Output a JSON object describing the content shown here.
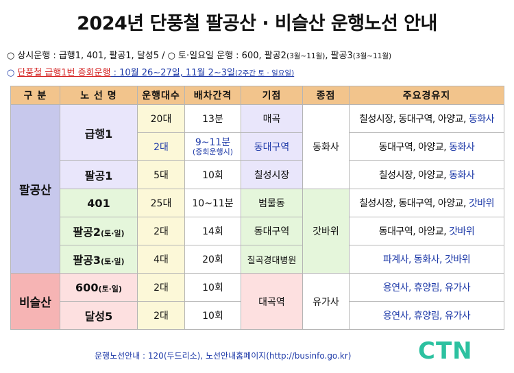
{
  "title": "2024년 단풍철 팔공산 · 비슬산 운행노선 안내",
  "notes": {
    "regular_prefix": "상시운행 : 급행1, 401, 팔공1, 달성5 /",
    "weekend_prefix": "토·일요일 운행 : 600, 팔공2",
    "weekend_p2_months": "(3월~11월)",
    "weekend_p3": ", 팔공3",
    "weekend_p3_months": "(3월~11월)",
    "extra_label": "단풍철 급행1번 증회운행",
    "extra_dates": " : 10월 26~27일, 11월 2~3일",
    "extra_small": "(2주간 토 · 일요일)"
  },
  "table": {
    "headers": [
      "구 분",
      "노 선 명",
      "운행대수",
      "배차간격",
      "기점",
      "종점",
      "주요경유지"
    ],
    "groups": [
      "팔공산",
      "비슬산"
    ],
    "rows": [
      {
        "route": "급행1",
        "vehicles": "20대",
        "interval": "13분",
        "start": "매곡",
        "end": "동화사",
        "stops_main": "칠성시장, 동대구역, 아양교, ",
        "stops_end": "동화사"
      },
      {
        "vehicles": "2대",
        "interval": "9~11분",
        "interval_sub": "(증회운행시)",
        "start": "동대구역",
        "stops_main": "동대구역, 아양교, ",
        "stops_end": "동화사"
      },
      {
        "route": "팔공1",
        "vehicles": "5대",
        "interval": "10회",
        "start": "칠성시장",
        "stops_main": "칠성시장, 아양교, ",
        "stops_end": "동화사"
      },
      {
        "route": "401",
        "vehicles": "25대",
        "interval": "10~11분",
        "start": "범물동",
        "end": "갓바위",
        "stops_main": "칠성시장, 동대구역, 아양교, ",
        "stops_end": "갓바위"
      },
      {
        "route": "팔공2",
        "route_small": "(토·일)",
        "vehicles": "2대",
        "interval": "14회",
        "start": "동대구역",
        "stops_main": "동대구역, 아양교, ",
        "stops_end": "갓바위"
      },
      {
        "route": "팔공3",
        "route_small": "(토·일)",
        "vehicles": "4대",
        "interval": "20회",
        "start": "칠곡경대병원",
        "stops_main": "파계사, 동화사, 갓바위",
        "stops_end": ""
      },
      {
        "route": "600",
        "route_small": "(토·일)",
        "vehicles": "2대",
        "interval": "10회",
        "start": "대곡역",
        "end": "유가사",
        "stops_main": "용연사, 휴양림, 유가사",
        "stops_end": ""
      },
      {
        "route": "달성5",
        "vehicles": "2대",
        "interval": "10회",
        "stops_main": "용연사, 휴양림, 유가사",
        "stops_end": ""
      }
    ]
  },
  "footer": "운행노선안내 : 120(두드리소), 노선안내홈페이지(http://businfo.go.kr)",
  "logo": "CTN",
  "colors": {
    "header": "#f2c48c",
    "palgong_group": "#c7c8ec",
    "biseul_group": "#f6b4b4",
    "highlight_blue": "#1e3aa8",
    "highlight_red": "#d41f1f",
    "logo": "#2cc1a0"
  }
}
